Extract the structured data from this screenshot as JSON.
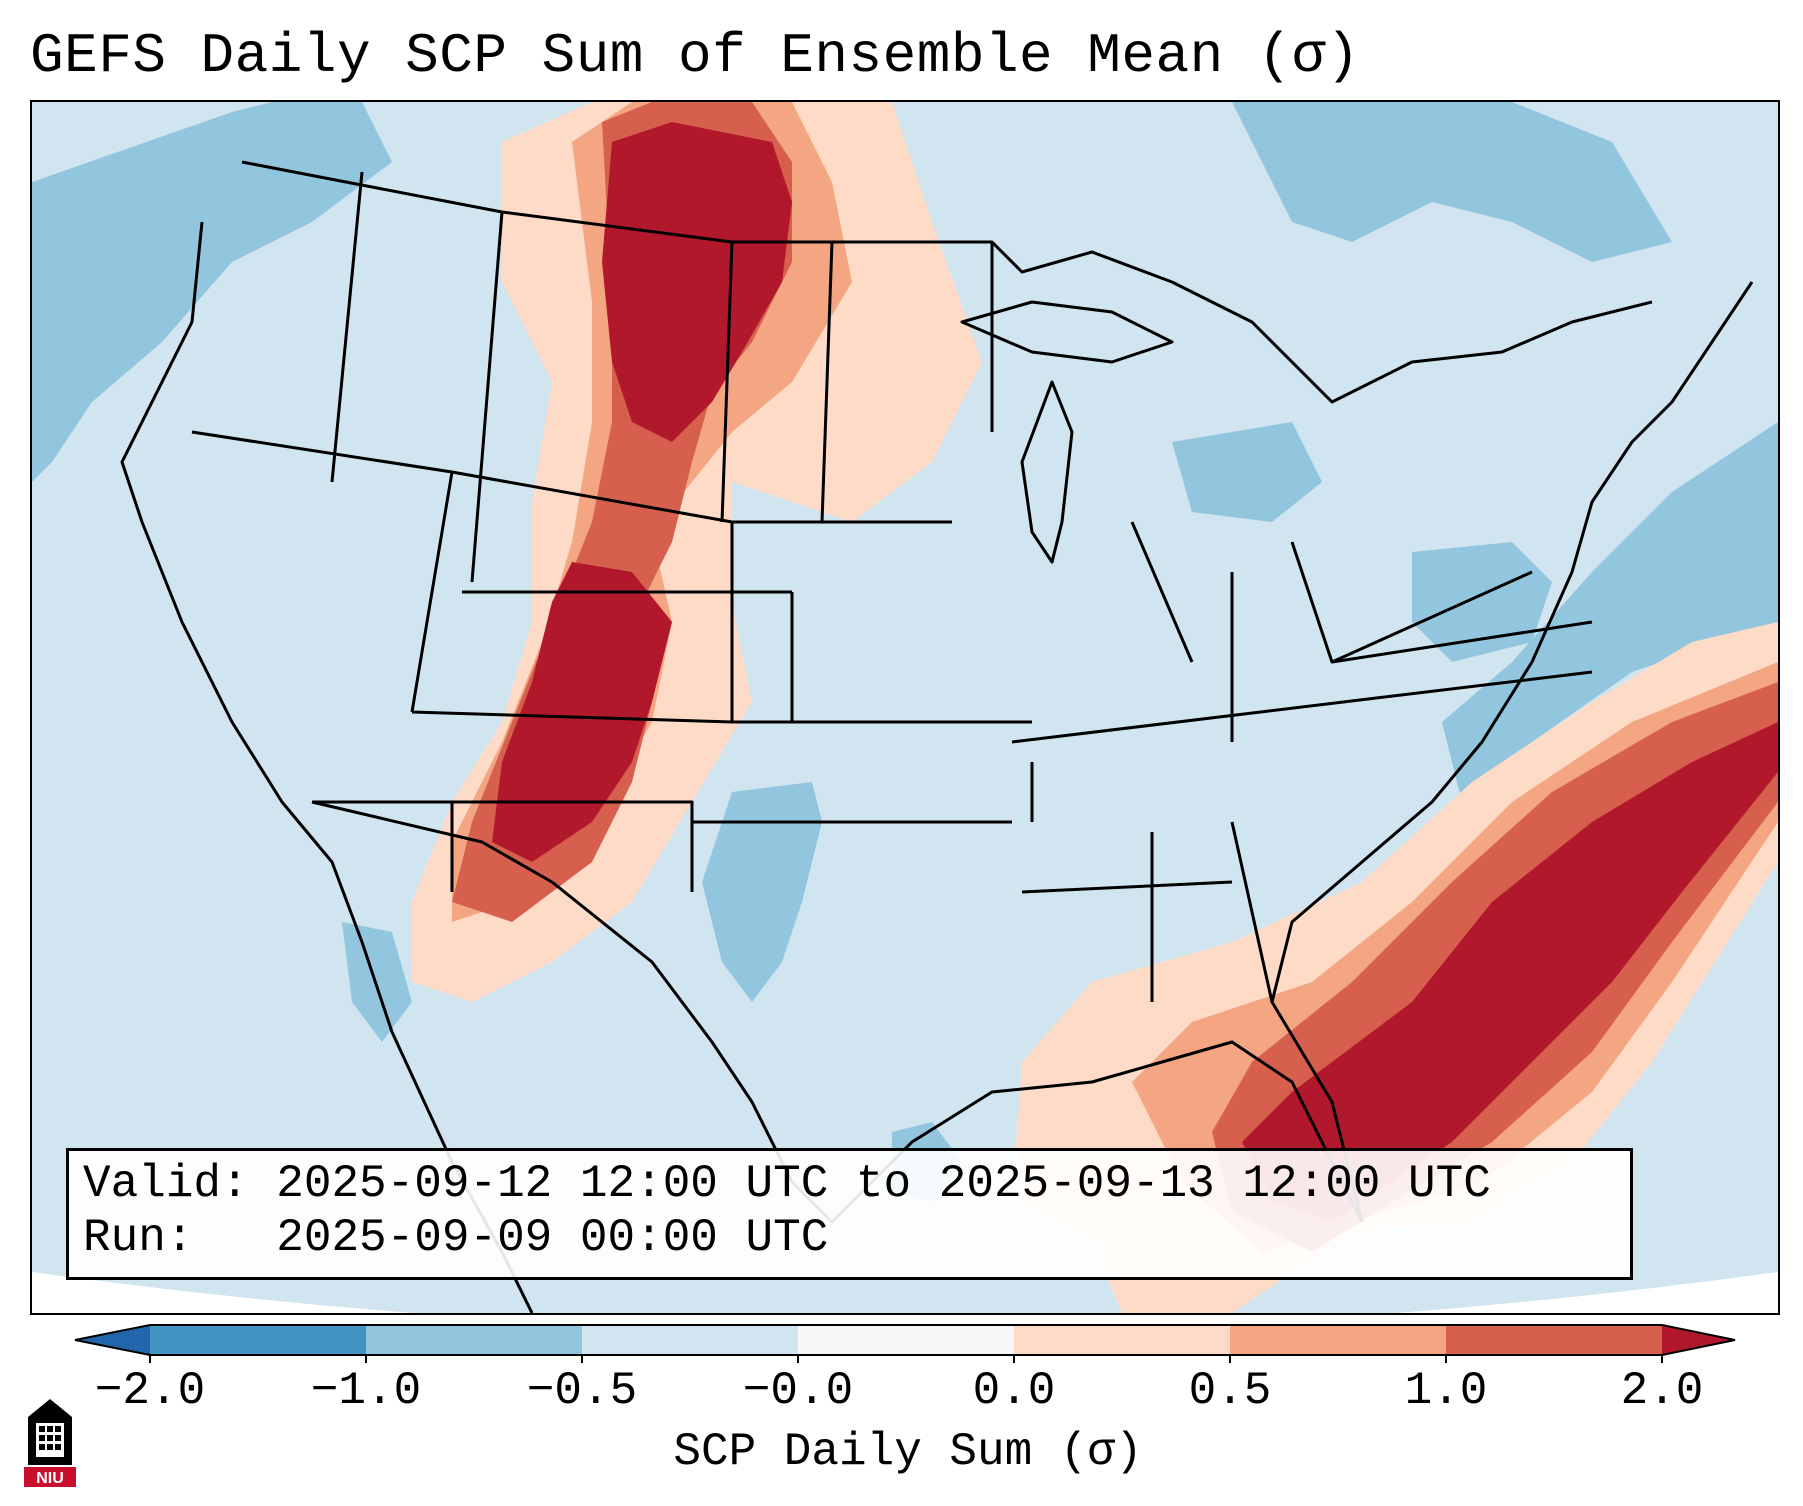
{
  "title": "GEFS Daily SCP Sum of Ensemble Mean (σ)",
  "info": {
    "valid_line": "Valid: 2025-09-12 12:00 UTC to 2025-09-13 12:00 UTC",
    "run_line": "Run:   2025-09-09 00:00 UTC"
  },
  "colorbar": {
    "label": "SCP Daily Sum (σ)",
    "ticks": [
      "−2.0",
      "−1.0",
      "−0.5",
      "−0.0",
      "0.0",
      "0.5",
      "1.0",
      "2.0"
    ],
    "bins": [
      {
        "range": "< -2.0",
        "color": "#2166ac"
      },
      {
        "range": "-2.0 to -1.0",
        "color": "#4393c3"
      },
      {
        "range": "-1.0 to -0.5",
        "color": "#92c5de"
      },
      {
        "range": "-0.5 to -0.0",
        "color": "#d1e5f0"
      },
      {
        "range": "-0.0 to 0.0",
        "color": "#f7f7f7"
      },
      {
        "range": "0.0 to 0.5",
        "color": "#fddbc7"
      },
      {
        "range": "0.5 to 1.0",
        "color": "#f4a582"
      },
      {
        "range": "1.0 to 2.0",
        "color": "#d6604d"
      },
      {
        "range": "> 2.0",
        "color": "#b2182b"
      }
    ]
  },
  "map": {
    "background_color": "#d1e5f0",
    "outside_projection_color": "#ffffff",
    "features": [
      {
        "name": "northern-rockies-high-scp",
        "level": "> 2.0",
        "color": "#b2182b"
      },
      {
        "name": "four-corners-high-scp",
        "level": "> 2.0",
        "color": "#b2182b"
      },
      {
        "name": "southeast-florida-high-scp",
        "level": "> 2.0",
        "color": "#b2182b"
      },
      {
        "name": "pacific-low-scp",
        "level": "-1.0 to -0.5",
        "color": "#92c5de"
      },
      {
        "name": "atlantic-low-scp",
        "level": "-1.0 to -0.5",
        "color": "#92c5de"
      }
    ]
  },
  "logo": {
    "text": "NIU",
    "colors": [
      "#c8102e",
      "#000000"
    ]
  }
}
